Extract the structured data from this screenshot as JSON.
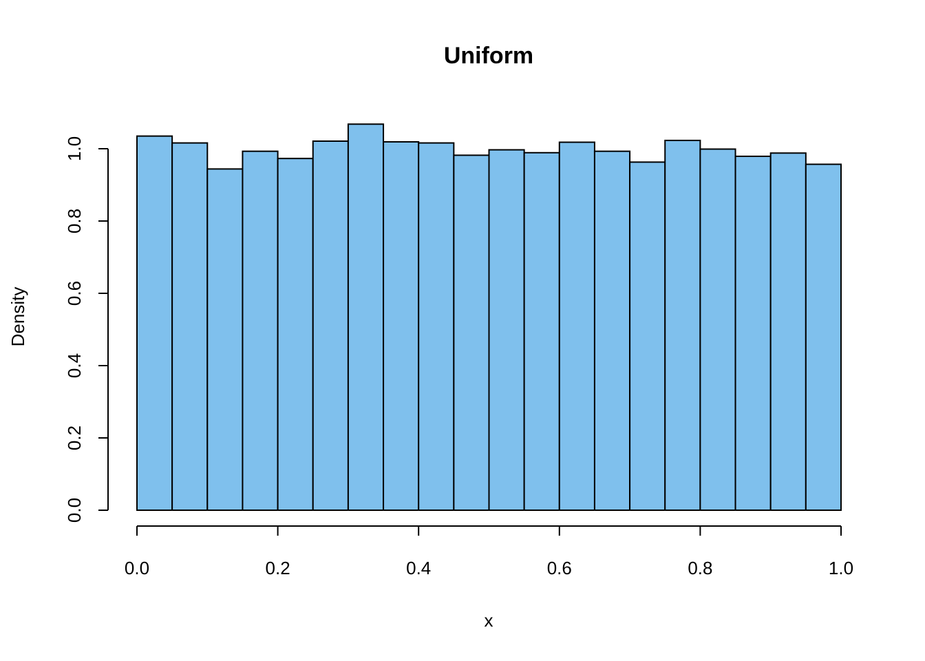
{
  "chart_data": {
    "type": "bar",
    "subtype": "histogram",
    "title": "Uniform",
    "xlabel": "x",
    "ylabel": "Density",
    "xlim": [
      0,
      1
    ],
    "ylim": [
      0,
      1.0
    ],
    "x_ticks": [
      0.0,
      0.2,
      0.4,
      0.6,
      0.8,
      1.0
    ],
    "x_tick_labels": [
      "0.0",
      "0.2",
      "0.4",
      "0.6",
      "0.8",
      "1.0"
    ],
    "y_ticks": [
      0.0,
      0.2,
      0.4,
      0.6,
      0.8,
      1.0
    ],
    "y_tick_labels": [
      "0.0",
      "0.2",
      "0.4",
      "0.6",
      "0.8",
      "1.0"
    ],
    "bin_width": 0.05,
    "bins": [
      [
        0.0,
        0.05
      ],
      [
        0.05,
        0.1
      ],
      [
        0.1,
        0.15
      ],
      [
        0.15,
        0.2
      ],
      [
        0.2,
        0.25
      ],
      [
        0.25,
        0.3
      ],
      [
        0.3,
        0.35
      ],
      [
        0.35,
        0.4
      ],
      [
        0.4,
        0.45
      ],
      [
        0.45,
        0.5
      ],
      [
        0.5,
        0.55
      ],
      [
        0.55,
        0.6
      ],
      [
        0.6,
        0.65
      ],
      [
        0.65,
        0.7
      ],
      [
        0.7,
        0.75
      ],
      [
        0.75,
        0.8
      ],
      [
        0.8,
        0.85
      ],
      [
        0.85,
        0.9
      ],
      [
        0.9,
        0.95
      ],
      [
        0.95,
        1.0
      ]
    ],
    "values": [
      1.035,
      1.016,
      0.944,
      0.993,
      0.973,
      1.021,
      1.068,
      1.019,
      1.016,
      0.982,
      0.997,
      0.989,
      1.018,
      0.993,
      0.963,
      1.023,
      0.999,
      0.979,
      0.988,
      0.957
    ],
    "grid": false,
    "colors": {
      "bar_fill": "#7FC0ED",
      "bar_border": "#000000",
      "background": "#FFFFFF"
    }
  }
}
